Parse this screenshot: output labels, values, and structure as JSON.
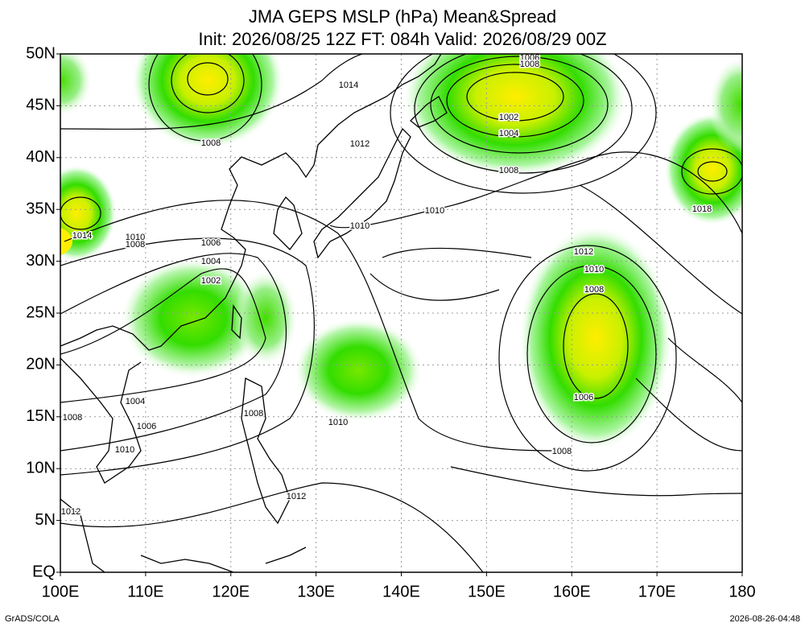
{
  "header": {
    "title": "JMA GEPS MSLP (hPa) Mean&Spread",
    "subtitle": "Init: 2026/08/25 12Z  FT: 084h  Valid: 2026/08/29 00Z"
  },
  "map": {
    "lat_labels": [
      "50N",
      "45N",
      "40N",
      "35N",
      "30N",
      "25N",
      "20N",
      "15N",
      "10N",
      "5N",
      "EQ"
    ],
    "lon_labels": [
      "100E",
      "110E",
      "120E",
      "130E",
      "140E",
      "150E",
      "160E",
      "170E",
      "180"
    ],
    "contour_labels": [
      "1014",
      "1012",
      "1008",
      "1006",
      "1008",
      "1002",
      "1004",
      "1008",
      "1010",
      "1010",
      "1018",
      "1014",
      "1010",
      "1008",
      "1006",
      "1004",
      "1002",
      "1012",
      "1010",
      "1008",
      "1006",
      "1008",
      "1004",
      "1006",
      "1008",
      "1010",
      "1008",
      "1010",
      "1012",
      "1012"
    ]
  },
  "footer": {
    "left": "GrADS/COLA",
    "right": "2026-08-26-04:48"
  }
}
